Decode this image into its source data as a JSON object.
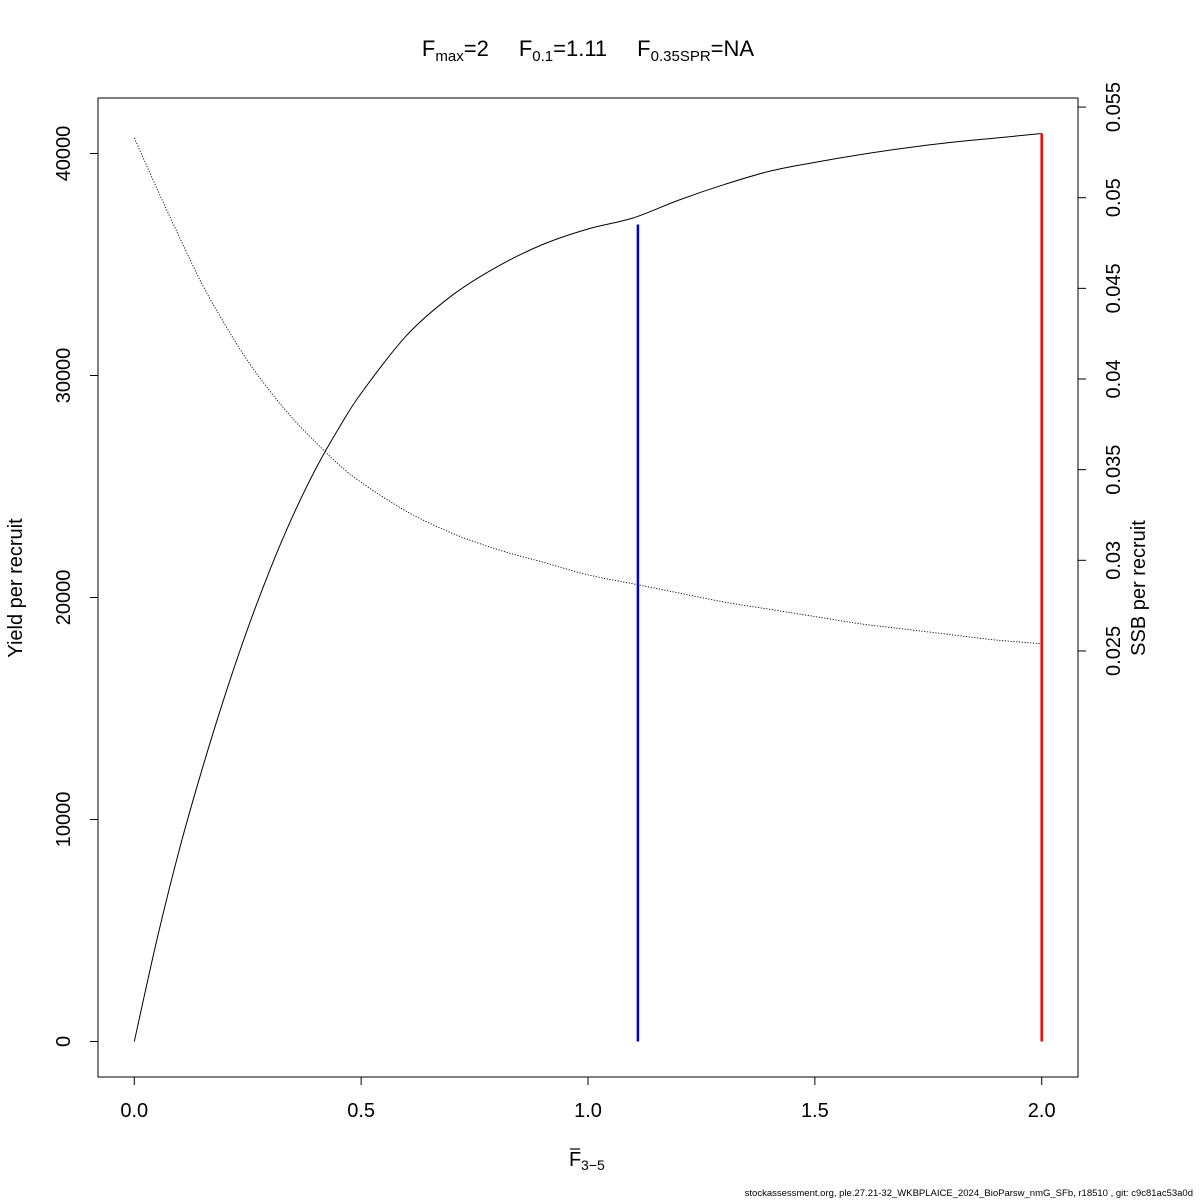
{
  "chart_data": {
    "type": "line",
    "title": {
      "fmax_sub": "max",
      "fmax_value": "2",
      "f01_sub": "0.1",
      "f01_value": "1.11",
      "fspr_sub": "0.35SPR",
      "fspr_value": "NA"
    },
    "xlabel": {
      "sub": "3−5"
    },
    "ylabel_left": "Yield per recruit",
    "ylabel_right": "SSB per recruit",
    "xlim": [
      -0.08,
      2.08
    ],
    "ylim_left": [
      -1600,
      42500
    ],
    "ylim_right": [
      0.0015,
      0.0555
    ],
    "x_ticks": [
      "0.0",
      "0.5",
      "1.0",
      "1.5",
      "2.0"
    ],
    "y_left_ticks": [
      "0",
      "10000",
      "20000",
      "30000",
      "40000"
    ],
    "y_right_ticks": [
      "0.025",
      "0.03",
      "0.035",
      "0.04",
      "0.045",
      "0.05",
      "0.055"
    ],
    "series": [
      {
        "axis": "left",
        "style": "solid",
        "color": "#000000",
        "x": [
          0,
          0.05,
          0.1,
          0.15,
          0.2,
          0.25,
          0.3,
          0.35,
          0.4,
          0.45,
          0.5,
          0.6,
          0.7,
          0.8,
          0.9,
          1.0,
          1.1,
          1.2,
          1.3,
          1.4,
          1.5,
          1.6,
          1.7,
          1.8,
          1.9,
          2.0
        ],
        "y": [
          0,
          4600,
          8700,
          12300,
          15600,
          18600,
          21300,
          23700,
          25800,
          27600,
          29200,
          31800,
          33600,
          34900,
          35900,
          36600,
          37100,
          37900,
          38600,
          39200,
          39600,
          39950,
          40250,
          40500,
          40700,
          40900
        ]
      },
      {
        "axis": "right",
        "style": "dotted",
        "color": "#000000",
        "x": [
          0,
          0.05,
          0.1,
          0.15,
          0.2,
          0.25,
          0.3,
          0.35,
          0.4,
          0.45,
          0.5,
          0.6,
          0.7,
          0.8,
          0.9,
          1.0,
          1.1,
          1.2,
          1.3,
          1.4,
          1.5,
          1.6,
          1.7,
          1.8,
          1.9,
          2.0
        ],
        "y": [
          0.0533,
          0.0505,
          0.0478,
          0.0452,
          0.043,
          0.041,
          0.0393,
          0.0378,
          0.0365,
          0.0353,
          0.0343,
          0.0327,
          0.0315,
          0.0306,
          0.0299,
          0.0292,
          0.0287,
          0.0282,
          0.0277,
          0.0273,
          0.0269,
          0.0265,
          0.0262,
          0.0259,
          0.0256,
          0.0254
        ]
      }
    ],
    "ref_lines": [
      {
        "x": 1.11,
        "y_top": 36800,
        "color": "#0000cd"
      },
      {
        "x": 2.0,
        "y_top": 40900,
        "color": "#ff0000"
      }
    ]
  },
  "footer": "stockassessment.org, ple.27.21-32_WKBPLAICE_2024_BioParsw_nmG_SFb, r18510 , git: c9c81ac53a0d"
}
